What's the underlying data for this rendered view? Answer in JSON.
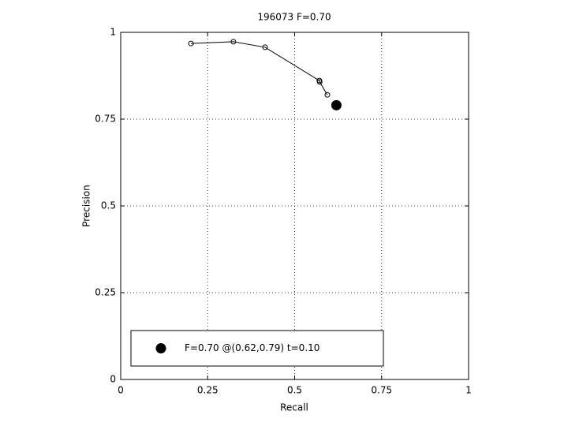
{
  "chart_data": {
    "type": "line",
    "title": "196073 F=0.70",
    "xlabel": "Recall",
    "ylabel": "Precision",
    "series": [
      {
        "color": "#000000",
        "marker": "open-circle",
        "x": [
          0.202,
          0.324,
          0.415,
          0.571,
          0.572,
          0.594
        ],
        "values": [
          0.968,
          0.973,
          0.957,
          0.861,
          0.857,
          0.82
        ]
      },
      {
        "name": "F=0.70 @(0.62,0.79) t=0.10",
        "color": "#000000",
        "marker": "filled-circle",
        "x": [
          0.62
        ],
        "values": [
          0.79
        ]
      }
    ],
    "xlim": [
      0,
      1
    ],
    "xticks": [
      0,
      0.25,
      0.5,
      0.75,
      1
    ],
    "ylim": [
      0,
      1
    ],
    "yticks": [
      0,
      0.25,
      0.5,
      0.75,
      1
    ],
    "grid": true,
    "legend": "lower left"
  }
}
